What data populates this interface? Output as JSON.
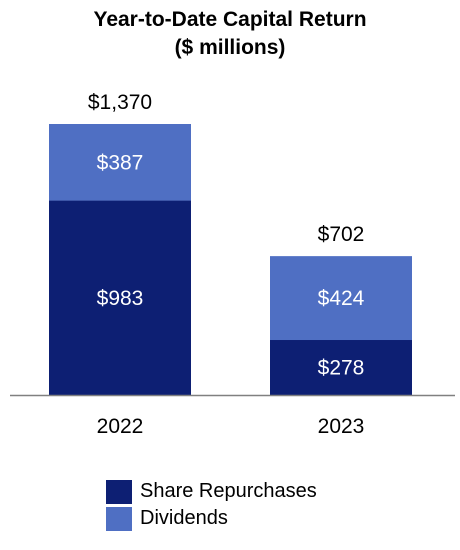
{
  "chart_data": {
    "type": "bar",
    "stacked": true,
    "title": "Year-to-Date Capital Return",
    "subtitle": "($ millions)",
    "categories": [
      "2022",
      "2023"
    ],
    "series": [
      {
        "name": "Share Repurchases",
        "values": [
          983,
          278
        ],
        "labels": [
          "$983",
          "$278"
        ],
        "color": "#0d1f73",
        "text_color": "#ffffff"
      },
      {
        "name": "Dividends",
        "values": [
          387,
          424
        ],
        "labels": [
          "$387",
          "$424"
        ],
        "color": "#4f6fc3",
        "text_color": "#ffffff"
      }
    ],
    "totals": [
      1370,
      702
    ],
    "total_labels": [
      "$1,370",
      "$702"
    ],
    "ylim": [
      0,
      1370
    ],
    "grid": false,
    "legend_position": "bottom"
  }
}
